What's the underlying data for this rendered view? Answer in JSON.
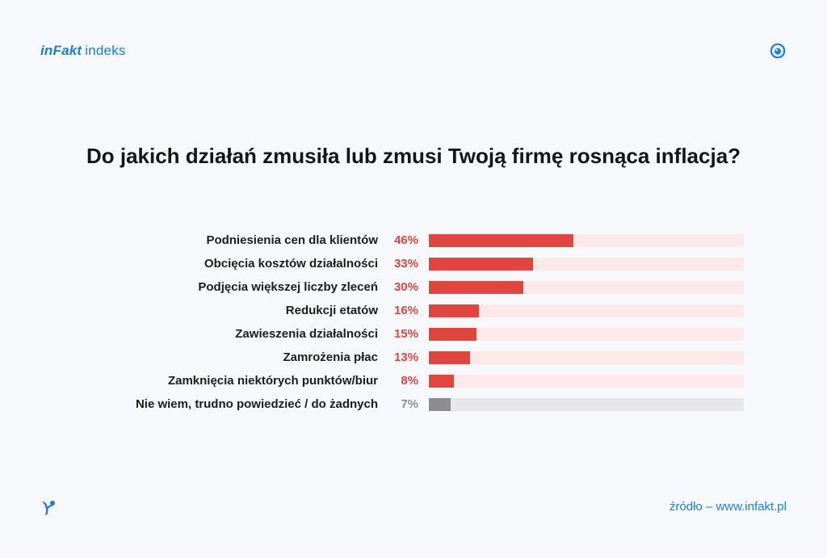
{
  "header": {
    "brand": "inFakt",
    "sub": "indeks"
  },
  "footer": {
    "source": "źródło – www.infakt.pl"
  },
  "colors": {
    "accent": "#1a7fd9",
    "bar_red": "#e0453f",
    "track_red": "#fde8ea",
    "value_red": "#e0453f",
    "bar_gray": "#8d8d91",
    "track_gray": "#e7e7ea",
    "value_gray": "#8d8d91"
  },
  "icons": {
    "top_right": "eye-icon",
    "bottom_left": "bird-icon"
  },
  "chart_data": {
    "type": "bar",
    "orientation": "horizontal",
    "title": "Do jakich działań zmusiła lub zmusi Twoją firmę rosnąca inflacja?",
    "categories": [
      "Podniesienia cen dla klientów",
      "Obcięcia kosztów działalności",
      "Podjęcia większej liczby zleceń",
      "Redukcji etatów",
      "Zawieszenia działalności",
      "Zamrożenia płac",
      "Zamknięcia niektórych punktów/biur",
      "Nie wiem, trudno powiedzieć / do żadnych"
    ],
    "values": [
      46,
      33,
      30,
      16,
      15,
      13,
      8,
      7
    ],
    "value_labels": [
      "46%",
      "33%",
      "30%",
      "16%",
      "15%",
      "13%",
      "8%",
      "7%"
    ],
    "xlim": [
      0,
      100
    ],
    "grid": false,
    "legend": "none",
    "highlight_gray_last": true
  }
}
